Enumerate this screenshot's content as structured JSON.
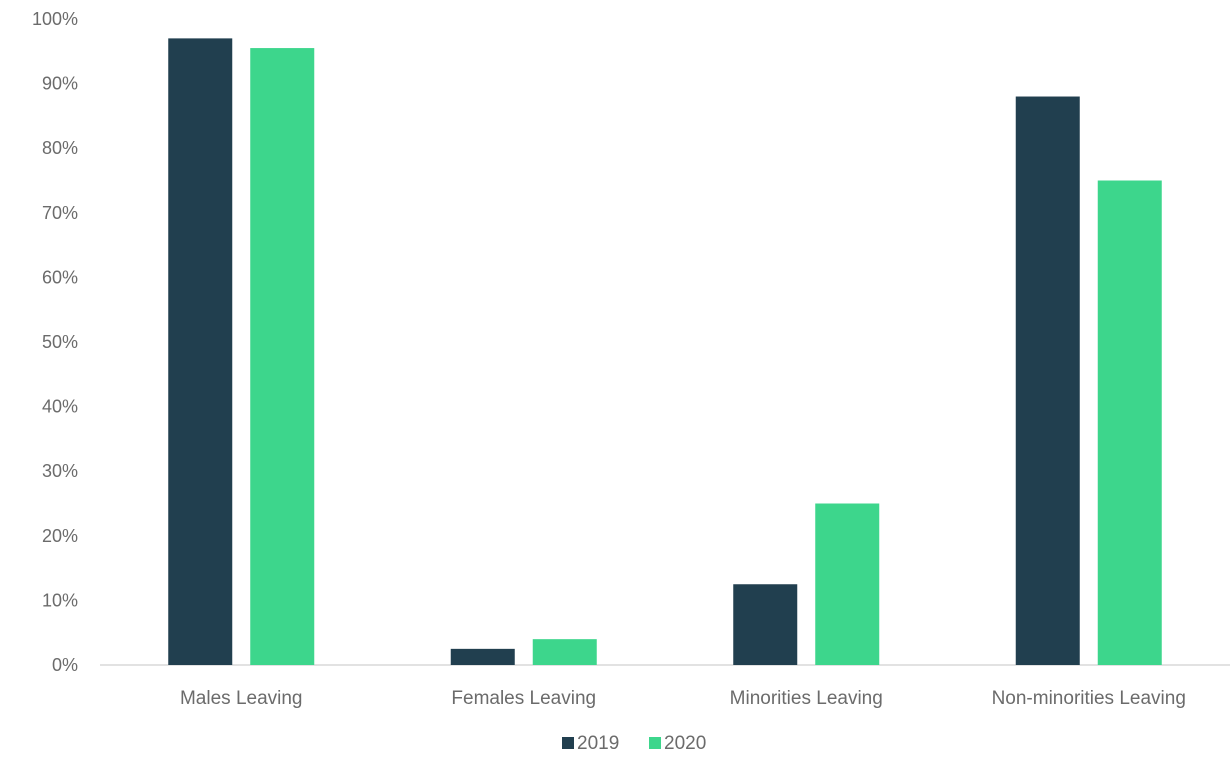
{
  "chart_data": {
    "type": "bar",
    "categories": [
      "Males Leaving",
      "Females Leaving",
      "Minorities Leaving",
      "Non-minorities Leaving"
    ],
    "series": [
      {
        "name": "2019",
        "color": "#213f4f",
        "values": [
          97,
          2.5,
          12.5,
          88
        ]
      },
      {
        "name": "2020",
        "color": "#3dd68c",
        "values": [
          95.5,
          4,
          25,
          75
        ]
      }
    ],
    "ylim": [
      0,
      100
    ],
    "yticks": [
      "0%",
      "10%",
      "20%",
      "30%",
      "40%",
      "50%",
      "60%",
      "70%",
      "80%",
      "90%",
      "100%"
    ],
    "grid": false,
    "legend_position": "bottom-center"
  }
}
